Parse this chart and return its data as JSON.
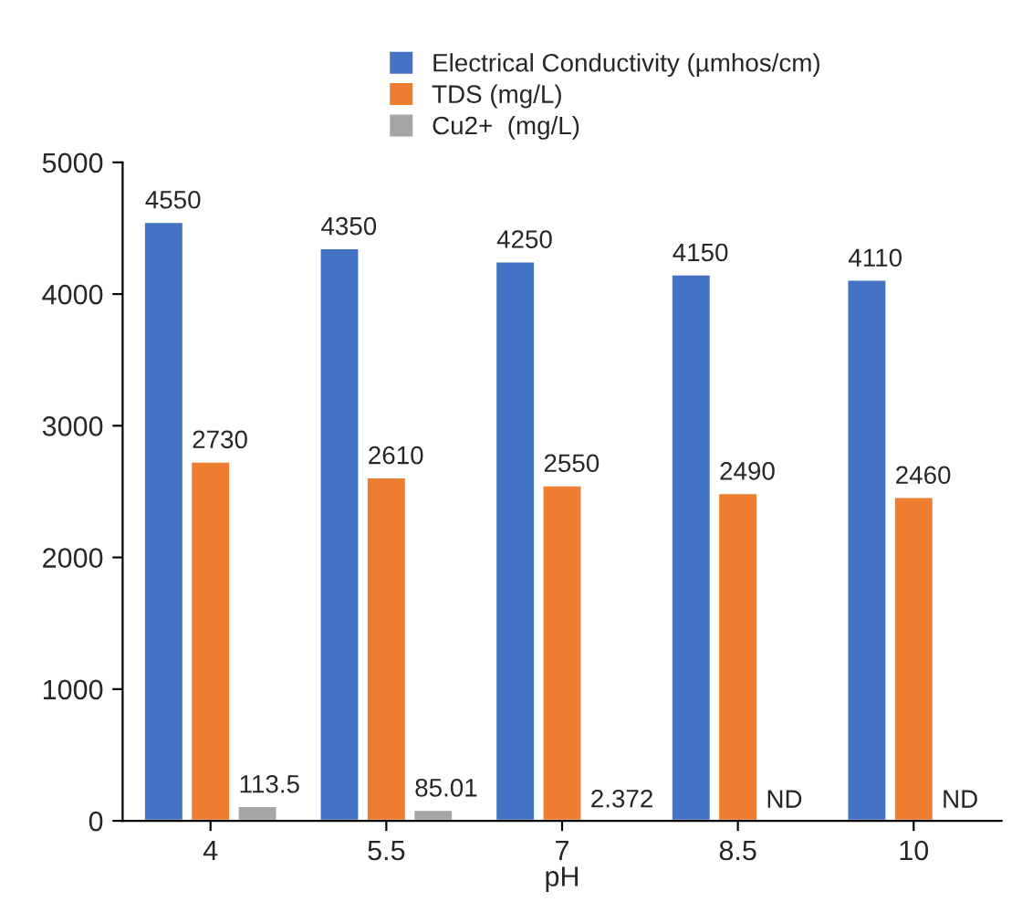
{
  "chart_data": {
    "type": "bar",
    "xlabel": "pH",
    "categories": [
      "4",
      "5.5",
      "7",
      "8.5",
      "10"
    ],
    "series": [
      {
        "name": "Electrical Conductivity (µmhos/cm)",
        "color": "#4472c4",
        "values": [
          4550,
          4350,
          4250,
          4150,
          4110
        ],
        "value_labels": [
          "4550",
          "4350",
          "4250",
          "4150",
          "4110"
        ]
      },
      {
        "name": "TDS (mg/L)",
        "color": "#ed7d31",
        "values": [
          2730,
          2610,
          2550,
          2490,
          2460
        ],
        "value_labels": [
          "2730",
          "2610",
          "2550",
          "2490",
          "2460"
        ]
      },
      {
        "name": "Cu2+  (mg/L)",
        "color": "#a5a5a5",
        "values": [
          113.5,
          85.01,
          2.372,
          null,
          null
        ],
        "value_labels": [
          "113.5",
          "85.01",
          "2.372",
          "ND",
          "ND"
        ]
      }
    ],
    "ylim": [
      0,
      5000
    ],
    "yticks": [
      0,
      1000,
      2000,
      3000,
      4000,
      5000
    ],
    "grid": false,
    "legend": "top"
  }
}
